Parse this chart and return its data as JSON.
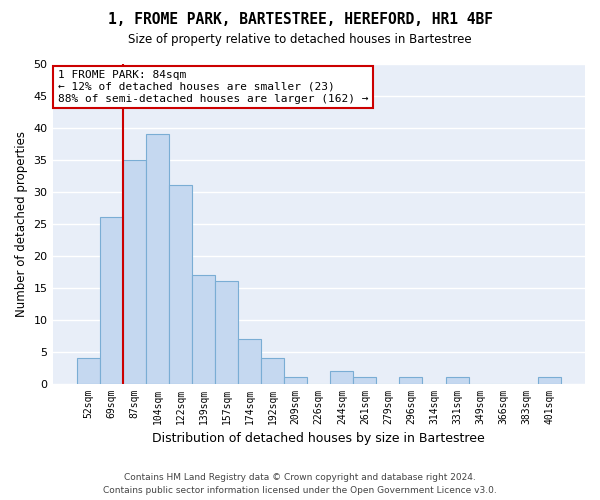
{
  "title": "1, FROME PARK, BARTESTREE, HEREFORD, HR1 4BF",
  "subtitle": "Size of property relative to detached houses in Bartestree",
  "xlabel": "Distribution of detached houses by size in Bartestree",
  "ylabel": "Number of detached properties",
  "bar_color": "#c5d8f0",
  "bar_edge_color": "#7aadd4",
  "categories": [
    "52sqm",
    "69sqm",
    "87sqm",
    "104sqm",
    "122sqm",
    "139sqm",
    "157sqm",
    "174sqm",
    "192sqm",
    "209sqm",
    "226sqm",
    "244sqm",
    "261sqm",
    "279sqm",
    "296sqm",
    "314sqm",
    "331sqm",
    "349sqm",
    "366sqm",
    "383sqm",
    "401sqm"
  ],
  "values": [
    4,
    26,
    35,
    39,
    31,
    17,
    16,
    7,
    4,
    1,
    0,
    2,
    1,
    0,
    1,
    0,
    1,
    0,
    0,
    0,
    1
  ],
  "ylim": [
    0,
    50
  ],
  "yticks": [
    0,
    5,
    10,
    15,
    20,
    25,
    30,
    35,
    40,
    45,
    50
  ],
  "annotation_text": "1 FROME PARK: 84sqm\n← 12% of detached houses are smaller (23)\n88% of semi-detached houses are larger (162) →",
  "annotation_box_color": "#ffffff",
  "annotation_box_edge_color": "#cc0000",
  "vline_color": "#cc0000",
  "background_color": "#e8eef8",
  "grid_color": "#ffffff",
  "footer_line1": "Contains HM Land Registry data © Crown copyright and database right 2024.",
  "footer_line2": "Contains public sector information licensed under the Open Government Licence v3.0."
}
